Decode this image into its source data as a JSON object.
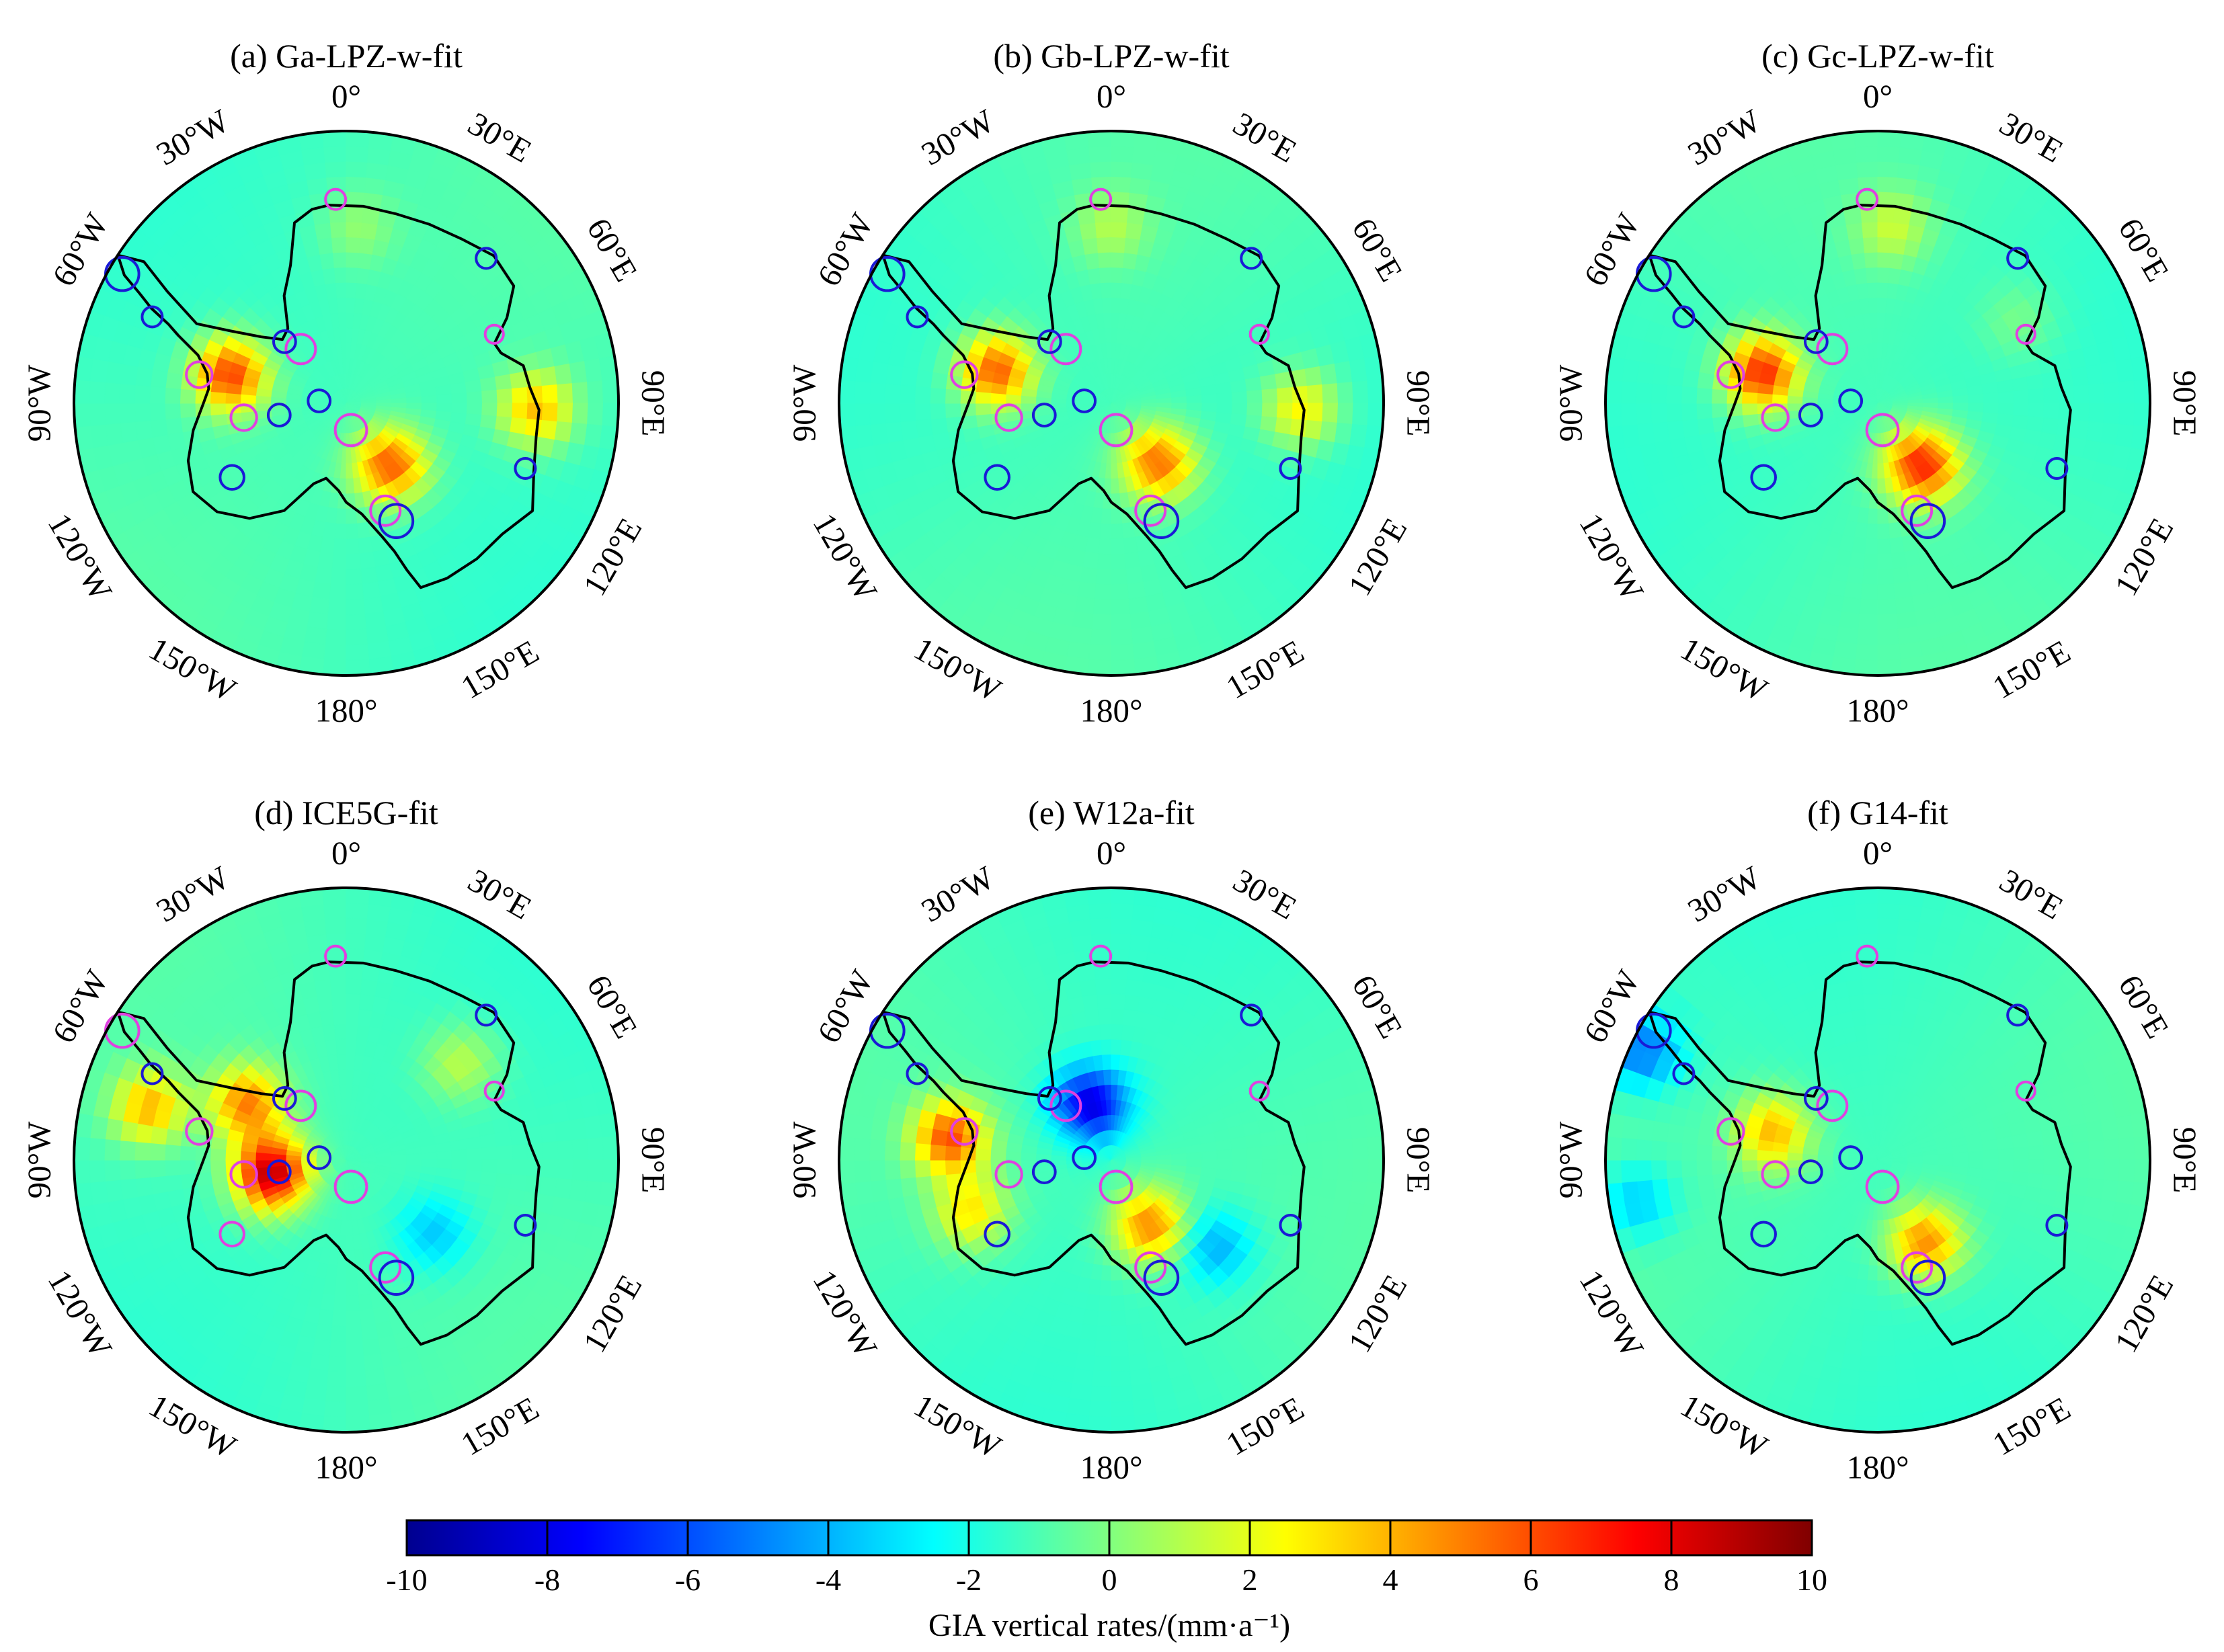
{
  "figure": {
    "panels": [
      {
        "title": "(a) Ga-LPZ-w-fit",
        "peaks": [
          {
            "lon": -76,
            "r": 0.44,
            "v": 7.5
          },
          {
            "lon": 145,
            "r": 0.28,
            "v": 7
          },
          {
            "lon": 92,
            "r": 0.7,
            "v": 5
          },
          {
            "lon": 4,
            "r": 0.65,
            "v": 1.5
          }
        ],
        "sites": [
          {
            "lon": -60,
            "r": 0.95,
            "s": 1.2,
            "c": "blue"
          },
          {
            "lon": -66,
            "r": 0.78,
            "s": 0.5,
            "c": "blue"
          },
          {
            "lon": -79,
            "r": 0.55,
            "s": 0.8,
            "c": "magenta"
          },
          {
            "lon": -98,
            "r": 0.38,
            "s": 0.8,
            "c": "magenta"
          },
          {
            "lon": -100,
            "r": 0.25,
            "s": 0.6,
            "c": "blue"
          },
          {
            "lon": -40,
            "r": 0.26,
            "s": 1.0,
            "c": "magenta"
          },
          {
            "lon": -45,
            "r": 0.32,
            "s": 0.6,
            "c": "blue"
          },
          {
            "lon": -85,
            "r": 0.1,
            "s": 0.6,
            "c": "blue"
          },
          {
            "lon": 170,
            "r": 0.1,
            "s": 1.1,
            "c": "magenta"
          },
          {
            "lon": 160,
            "r": 0.42,
            "s": 1.0,
            "c": "magenta"
          },
          {
            "lon": 157,
            "r": 0.47,
            "s": 1.2,
            "c": "blue"
          },
          {
            "lon": -123,
            "r": 0.5,
            "s": 0.7,
            "c": "blue"
          },
          {
            "lon": -3,
            "r": 0.75,
            "s": 0.5,
            "c": "magenta"
          },
          {
            "lon": 44,
            "r": 0.74,
            "s": 0.5,
            "c": "blue"
          },
          {
            "lon": 65,
            "r": 0.6,
            "s": 0.4,
            "c": "magenta"
          },
          {
            "lon": 110,
            "r": 0.7,
            "s": 0.5,
            "c": "blue"
          }
        ]
      },
      {
        "title": "(b) Gb-LPZ-w-fit",
        "peaks": [
          {
            "lon": -74,
            "r": 0.44,
            "v": 7
          },
          {
            "lon": 142,
            "r": 0.28,
            "v": 6.5
          },
          {
            "lon": 92,
            "r": 0.7,
            "v": 4
          },
          {
            "lon": 0,
            "r": 0.65,
            "v": 2
          }
        ],
        "sites": [
          {
            "lon": -60,
            "r": 0.95,
            "s": 1.2,
            "c": "blue"
          },
          {
            "lon": -66,
            "r": 0.78,
            "s": 0.5,
            "c": "blue"
          },
          {
            "lon": -79,
            "r": 0.55,
            "s": 0.8,
            "c": "magenta"
          },
          {
            "lon": -98,
            "r": 0.38,
            "s": 0.8,
            "c": "magenta"
          },
          {
            "lon": -100,
            "r": 0.25,
            "s": 0.6,
            "c": "blue"
          },
          {
            "lon": -40,
            "r": 0.26,
            "s": 1.0,
            "c": "magenta"
          },
          {
            "lon": -45,
            "r": 0.32,
            "s": 0.6,
            "c": "blue"
          },
          {
            "lon": -85,
            "r": 0.1,
            "s": 0.6,
            "c": "blue"
          },
          {
            "lon": 170,
            "r": 0.1,
            "s": 1.1,
            "c": "magenta"
          },
          {
            "lon": 160,
            "r": 0.42,
            "s": 1.0,
            "c": "magenta"
          },
          {
            "lon": 157,
            "r": 0.47,
            "s": 1.2,
            "c": "blue"
          },
          {
            "lon": -123,
            "r": 0.5,
            "s": 0.7,
            "c": "blue"
          },
          {
            "lon": -3,
            "r": 0.75,
            "s": 0.5,
            "c": "magenta"
          },
          {
            "lon": 44,
            "r": 0.74,
            "s": 0.5,
            "c": "blue"
          },
          {
            "lon": 65,
            "r": 0.6,
            "s": 0.4,
            "c": "magenta"
          },
          {
            "lon": 110,
            "r": 0.7,
            "s": 0.5,
            "c": "blue"
          }
        ]
      },
      {
        "title": "(c) Gc-LPZ-w-fit",
        "peaks": [
          {
            "lon": -75,
            "r": 0.44,
            "v": 8
          },
          {
            "lon": 145,
            "r": 0.28,
            "v": 8
          },
          {
            "lon": 5,
            "r": 0.65,
            "v": 2.5
          },
          {
            "lon": 60,
            "r": 0.6,
            "v": 1.2
          }
        ],
        "sites": [
          {
            "lon": -60,
            "r": 0.95,
            "s": 1.2,
            "c": "blue"
          },
          {
            "lon": -66,
            "r": 0.78,
            "s": 0.5,
            "c": "blue"
          },
          {
            "lon": -79,
            "r": 0.55,
            "s": 0.8,
            "c": "magenta"
          },
          {
            "lon": -98,
            "r": 0.38,
            "s": 0.8,
            "c": "magenta"
          },
          {
            "lon": -100,
            "r": 0.25,
            "s": 0.6,
            "c": "blue"
          },
          {
            "lon": -40,
            "r": 0.26,
            "s": 1.0,
            "c": "magenta"
          },
          {
            "lon": -45,
            "r": 0.32,
            "s": 0.6,
            "c": "blue"
          },
          {
            "lon": -85,
            "r": 0.1,
            "s": 0.6,
            "c": "blue"
          },
          {
            "lon": 170,
            "r": 0.1,
            "s": 1.1,
            "c": "magenta"
          },
          {
            "lon": 160,
            "r": 0.42,
            "s": 1.0,
            "c": "magenta"
          },
          {
            "lon": 157,
            "r": 0.47,
            "s": 1.2,
            "c": "blue"
          },
          {
            "lon": -123,
            "r": 0.5,
            "s": 0.7,
            "c": "blue"
          },
          {
            "lon": -3,
            "r": 0.75,
            "s": 0.5,
            "c": "magenta"
          },
          {
            "lon": 44,
            "r": 0.74,
            "s": 0.5,
            "c": "blue"
          },
          {
            "lon": 65,
            "r": 0.6,
            "s": 0.4,
            "c": "magenta"
          },
          {
            "lon": 110,
            "r": 0.7,
            "s": 0.5,
            "c": "blue"
          }
        ]
      },
      {
        "title": "(d) ICE5G-fit",
        "peaks": [
          {
            "lon": -100,
            "r": 0.28,
            "v": 10
          },
          {
            "lon": -60,
            "r": 0.42,
            "v": 6
          },
          {
            "lon": -75,
            "r": 0.75,
            "v": 5
          },
          {
            "lon": 130,
            "r": 0.42,
            "v": -2.5
          },
          {
            "lon": 50,
            "r": 0.55,
            "v": 2.5
          }
        ],
        "sites": [
          {
            "lon": -60,
            "r": 0.95,
            "s": 1.2,
            "c": "magenta"
          },
          {
            "lon": -66,
            "r": 0.78,
            "s": 0.5,
            "c": "blue"
          },
          {
            "lon": -79,
            "r": 0.55,
            "s": 0.8,
            "c": "magenta"
          },
          {
            "lon": -98,
            "r": 0.38,
            "s": 0.8,
            "c": "magenta"
          },
          {
            "lon": -100,
            "r": 0.25,
            "s": 0.6,
            "c": "blue"
          },
          {
            "lon": -40,
            "r": 0.26,
            "s": 1.0,
            "c": "magenta"
          },
          {
            "lon": -45,
            "r": 0.32,
            "s": 0.6,
            "c": "blue"
          },
          {
            "lon": -85,
            "r": 0.1,
            "s": 0.6,
            "c": "blue"
          },
          {
            "lon": 170,
            "r": 0.1,
            "s": 1.1,
            "c": "magenta"
          },
          {
            "lon": 160,
            "r": 0.42,
            "s": 1.0,
            "c": "magenta"
          },
          {
            "lon": 157,
            "r": 0.47,
            "s": 1.2,
            "c": "blue"
          },
          {
            "lon": -123,
            "r": 0.5,
            "s": 0.7,
            "c": "magenta"
          },
          {
            "lon": -3,
            "r": 0.75,
            "s": 0.5,
            "c": "magenta"
          },
          {
            "lon": 44,
            "r": 0.74,
            "s": 0.5,
            "c": "blue"
          },
          {
            "lon": 65,
            "r": 0.6,
            "s": 0.4,
            "c": "magenta"
          },
          {
            "lon": 110,
            "r": 0.7,
            "s": 0.5,
            "c": "blue"
          }
        ]
      },
      {
        "title": "(e) W12a-fit",
        "peaks": [
          {
            "lon": -82,
            "r": 0.6,
            "v": 7
          },
          {
            "lon": 150,
            "r": 0.28,
            "v": 6
          },
          {
            "lon": -20,
            "r": 0.22,
            "v": -7
          },
          {
            "lon": 130,
            "r": 0.5,
            "v": -3
          },
          {
            "lon": -110,
            "r": 0.55,
            "v": 4
          }
        ],
        "sites": [
          {
            "lon": -60,
            "r": 0.95,
            "s": 1.2,
            "c": "blue"
          },
          {
            "lon": -66,
            "r": 0.78,
            "s": 0.5,
            "c": "blue"
          },
          {
            "lon": -79,
            "r": 0.55,
            "s": 0.8,
            "c": "magenta"
          },
          {
            "lon": -98,
            "r": 0.38,
            "s": 0.8,
            "c": "magenta"
          },
          {
            "lon": -100,
            "r": 0.25,
            "s": 0.6,
            "c": "blue"
          },
          {
            "lon": -40,
            "r": 0.26,
            "s": 1.0,
            "c": "magenta"
          },
          {
            "lon": -45,
            "r": 0.32,
            "s": 0.6,
            "c": "blue"
          },
          {
            "lon": -85,
            "r": 0.1,
            "s": 0.6,
            "c": "blue"
          },
          {
            "lon": 170,
            "r": 0.1,
            "s": 1.1,
            "c": "magenta"
          },
          {
            "lon": 160,
            "r": 0.42,
            "s": 1.0,
            "c": "magenta"
          },
          {
            "lon": 157,
            "r": 0.47,
            "s": 1.2,
            "c": "blue"
          },
          {
            "lon": -123,
            "r": 0.5,
            "s": 0.7,
            "c": "blue"
          },
          {
            "lon": -3,
            "r": 0.75,
            "s": 0.5,
            "c": "magenta"
          },
          {
            "lon": 44,
            "r": 0.74,
            "s": 0.5,
            "c": "blue"
          },
          {
            "lon": 65,
            "r": 0.6,
            "s": 0.4,
            "c": "magenta"
          },
          {
            "lon": 110,
            "r": 0.7,
            "s": 0.5,
            "c": "blue"
          }
        ]
      },
      {
        "title": "(f) G14-fit",
        "peaks": [
          {
            "lon": -75,
            "r": 0.4,
            "v": 5
          },
          {
            "lon": 150,
            "r": 0.35,
            "v": 6
          },
          {
            "lon": -65,
            "r": 0.95,
            "v": -4
          },
          {
            "lon": -100,
            "r": 0.9,
            "v": -2.5
          }
        ],
        "sites": [
          {
            "lon": -60,
            "r": 0.95,
            "s": 1.2,
            "c": "blue"
          },
          {
            "lon": -66,
            "r": 0.78,
            "s": 0.5,
            "c": "blue"
          },
          {
            "lon": -79,
            "r": 0.55,
            "s": 0.8,
            "c": "magenta"
          },
          {
            "lon": -98,
            "r": 0.38,
            "s": 0.8,
            "c": "magenta"
          },
          {
            "lon": -100,
            "r": 0.25,
            "s": 0.6,
            "c": "blue"
          },
          {
            "lon": -40,
            "r": 0.26,
            "s": 1.0,
            "c": "magenta"
          },
          {
            "lon": -45,
            "r": 0.32,
            "s": 0.6,
            "c": "blue"
          },
          {
            "lon": -85,
            "r": 0.1,
            "s": 0.6,
            "c": "blue"
          },
          {
            "lon": 170,
            "r": 0.1,
            "s": 1.1,
            "c": "magenta"
          },
          {
            "lon": 160,
            "r": 0.42,
            "s": 1.0,
            "c": "magenta"
          },
          {
            "lon": 157,
            "r": 0.47,
            "s": 1.2,
            "c": "blue"
          },
          {
            "lon": -123,
            "r": 0.5,
            "s": 0.7,
            "c": "blue"
          },
          {
            "lon": -3,
            "r": 0.75,
            "s": 0.5,
            "c": "magenta"
          },
          {
            "lon": 44,
            "r": 0.74,
            "s": 0.5,
            "c": "blue"
          },
          {
            "lon": 65,
            "r": 0.6,
            "s": 0.4,
            "c": "magenta"
          },
          {
            "lon": 110,
            "r": 0.7,
            "s": 0.5,
            "c": "blue"
          }
        ]
      }
    ],
    "lon_labels": [
      {
        "text": "0°",
        "lon": 0
      },
      {
        "text": "30°E",
        "lon": 30
      },
      {
        "text": "60°E",
        "lon": 60
      },
      {
        "text": "90°E",
        "lon": 90
      },
      {
        "text": "120°E",
        "lon": 120
      },
      {
        "text": "150°E",
        "lon": 150
      },
      {
        "text": "180°",
        "lon": 180
      },
      {
        "text": "150°W",
        "lon": -150
      },
      {
        "text": "120°W",
        "lon": -120
      },
      {
        "text": "90°W",
        "lon": -90
      },
      {
        "text": "60°W",
        "lon": -60
      },
      {
        "text": "30°W",
        "lon": -30
      }
    ],
    "colorbar": {
      "title": "GIA vertical rates/(mm·a⁻¹)",
      "min": -10,
      "max": 10,
      "ticks": [
        "-10",
        "-8",
        "-6",
        "-4",
        "-2",
        "0",
        "2",
        "4",
        "6",
        "8",
        "10"
      ],
      "colors": [
        "#00008f",
        "#0000ff",
        "#0080ff",
        "#00ffff",
        "#80ff80",
        "#ffff00",
        "#ff8000",
        "#ff0000",
        "#800000"
      ]
    },
    "site_colors": {
      "blue": "#1a1ad6",
      "magenta": "#e040e0"
    },
    "coastline_color": "#000000"
  }
}
